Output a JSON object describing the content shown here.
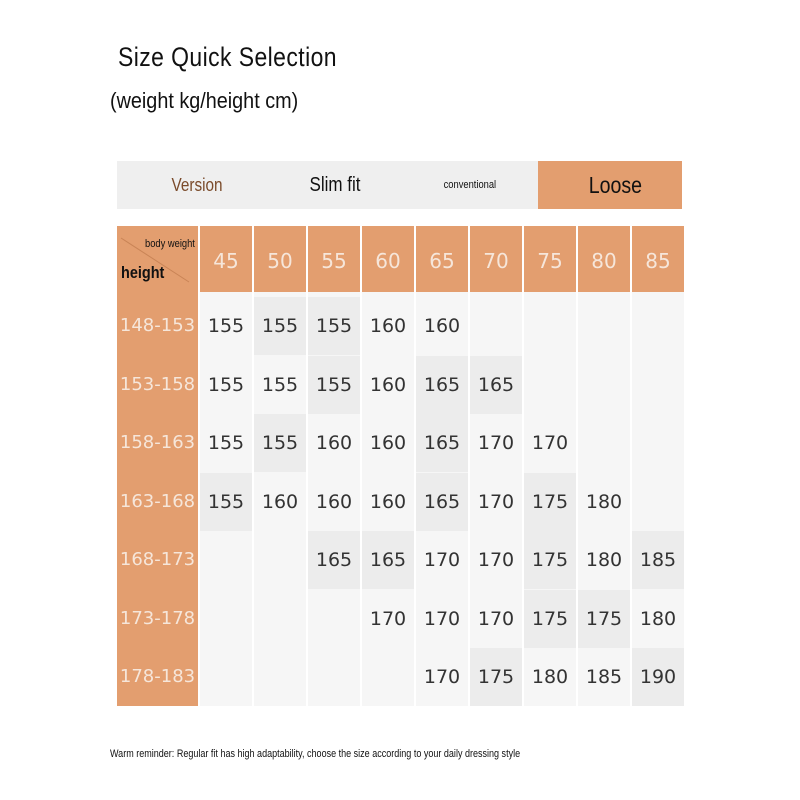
{
  "title": "Size Quick Selection",
  "subtitle": "(weight kg/height cm)",
  "version_bar": {
    "version_label": "Version",
    "slim_label": "Slim fit",
    "conventional_label": "conventional",
    "loose_label": "Loose"
  },
  "colors": {
    "accent": "#e39e6f",
    "version_text": "#7a4a2a",
    "bar_bg": "#efefef"
  },
  "table": {
    "corner_weight_label": "body weight",
    "corner_height_label": "height",
    "weights": [
      "45",
      "50",
      "55",
      "60",
      "65",
      "70",
      "75",
      "80",
      "85"
    ],
    "heights": [
      "148-153",
      "153-158",
      "158-163",
      "163-168",
      "168-173",
      "173-178",
      "178-183"
    ],
    "rows": [
      [
        "155",
        "155",
        "155",
        "160",
        "160",
        "",
        "",
        "",
        ""
      ],
      [
        "155",
        "155",
        "155",
        "160",
        "165",
        "165",
        "",
        "",
        ""
      ],
      [
        "155",
        "155",
        "160",
        "160",
        "165",
        "170",
        "170",
        "",
        ""
      ],
      [
        "155",
        "160",
        "160",
        "160",
        "165",
        "170",
        "175",
        "180",
        ""
      ],
      [
        "",
        "",
        "165",
        "165",
        "170",
        "170",
        "175",
        "180",
        "185"
      ],
      [
        "",
        "",
        "",
        "170",
        "170",
        "170",
        "175",
        "175",
        "180"
      ],
      [
        "",
        "",
        "",
        "",
        "170",
        "175",
        "180",
        "185",
        "190"
      ]
    ]
  },
  "note": "Warm reminder: Regular fit has high adaptability, choose the size according to your daily dressing style"
}
